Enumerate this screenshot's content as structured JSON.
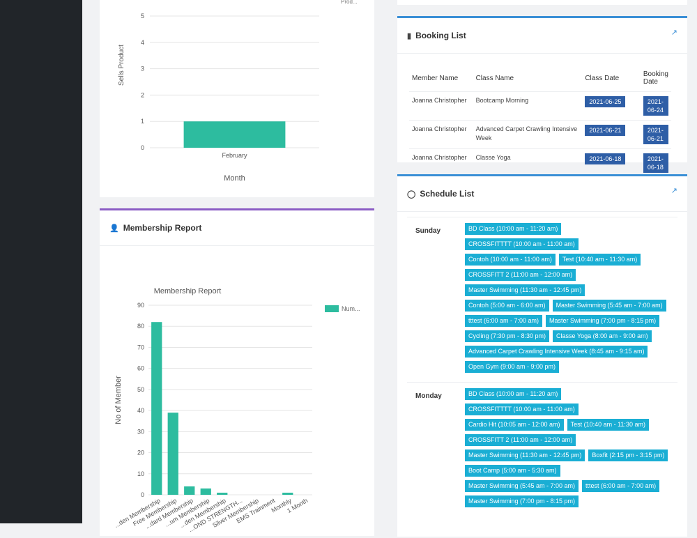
{
  "colors": {
    "sidebar": "#212529",
    "bar": "#2dbc9f",
    "badge": "#2e5ea6",
    "chip": "#1aaed4",
    "accent_purple": "#8b5cc4",
    "accent_blue": "#3a8fd6"
  },
  "sales_chart": {
    "chart_data": {
      "type": "bar",
      "categories": [
        "February"
      ],
      "values": [
        1
      ],
      "ylim": [
        0,
        5
      ],
      "yticks": [
        "0",
        "1",
        "2",
        "3",
        "4",
        "5"
      ],
      "xlabel": "Month",
      "ylabel": "Sells Product",
      "legend": "Prod...",
      "grid": true,
      "legend_position": "top-right"
    }
  },
  "membership_report": {
    "title": "Membership Report",
    "chart_data": {
      "type": "bar",
      "title": "Membership Report",
      "ylabel": "No of Member",
      "ylim": [
        0,
        90
      ],
      "yticks": [
        "0",
        "10",
        "20",
        "30",
        "40",
        "50",
        "60",
        "70",
        "80",
        "90"
      ],
      "categories": [
        "...den Membership",
        "Free Membership",
        "...dard Membership",
        "...um Membership",
        "...den Membership",
        "...OND STRENGTH...",
        "Silver Membership",
        "EMS Trainment",
        "Monthly",
        "1 Month"
      ],
      "values": [
        82,
        39,
        4,
        3,
        1,
        0,
        0,
        0,
        1,
        0
      ],
      "legend": "Num...",
      "grid": true,
      "legend_position": "top-right"
    }
  },
  "booking_list": {
    "title": "Booking List",
    "columns": [
      "Member Name",
      "Class Name",
      "Class Date",
      "Booking Date"
    ],
    "rows": [
      {
        "member": "Joanna Christopher",
        "class": "Bootcamp Morning",
        "class_date": "2021-06-25",
        "booking_date": "2021-06-24"
      },
      {
        "member": "Joanna Christopher",
        "class": "Advanced Carpet Crawling Intensive Week",
        "class_date": "2021-06-21",
        "booking_date": "2021-06-21"
      },
      {
        "member": "Joanna Christopher",
        "class": "Classe Yoga",
        "class_date": "2021-06-18",
        "booking_date": "2021-06-18"
      }
    ]
  },
  "schedule_list": {
    "title": "Schedule List",
    "days": [
      {
        "day": "Sunday",
        "classes": [
          "BD Class (10:00 am - 11:20 am)",
          "CROSSFITTTT (10:00 am - 11:00 am)",
          "Contoh (10:00 am - 11:00 am)",
          "Test (10:40 am - 11:30 am)",
          "CROSSFITT 2 (11:00 am - 12:00 am)",
          "Master Swimming (11:30 am - 12:45 pm)",
          "Contoh (5:00 am - 6:00 am)",
          "Master Swimming (5:45 am - 7:00 am)",
          "tttest (6:00 am - 7:00 am)",
          "Master Swimming (7:00 pm - 8:15 pm)",
          "Cycling (7:30 pm - 8:30 pm)",
          "Classe Yoga (8:00 am - 9:00 am)",
          "Advanced Carpet Crawling Intensive Week (8:45 am - 9:15 am)",
          "Open Gym (9:00 am - 9:00 pm)"
        ]
      },
      {
        "day": "Monday",
        "classes": [
          "BD Class (10:00 am - 11:20 am)",
          "CROSSFITTTT (10:00 am - 11:00 am)",
          "Cardio Hit (10:05 am - 12:00 am)",
          "Test (10:40 am - 11:30 am)",
          "CROSSFITT 2 (11:00 am - 12:00 am)",
          "Master Swimming (11:30 am - 12:45 pm)",
          "Boxfit (2:15 pm - 3:15 pm)",
          "Boot Camp (5:00 am - 5:30 am)",
          "Master Swimming (5:45 am - 7:00 am)",
          "tttest (6:00 am - 7:00 am)",
          "Master Swimming (7:00 pm - 8:15 pm)"
        ]
      }
    ]
  }
}
